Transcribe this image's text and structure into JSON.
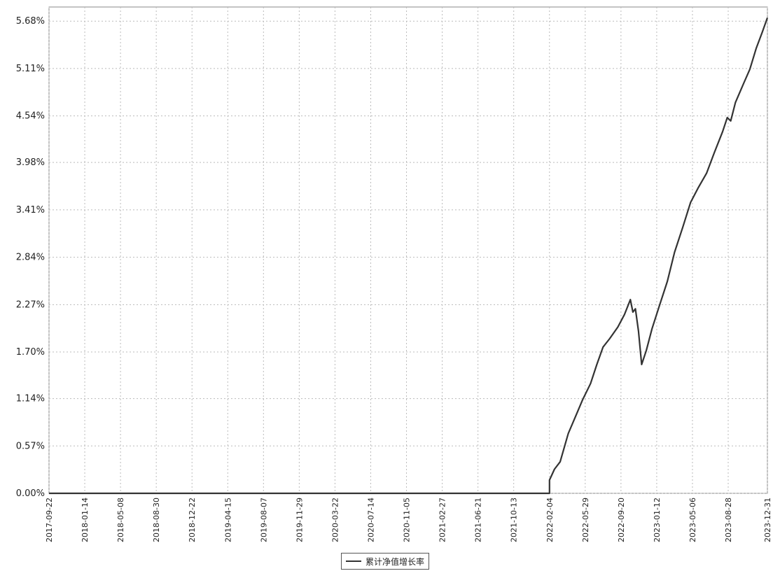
{
  "chart_data": {
    "type": "line",
    "title": "",
    "xlabel": "",
    "ylabel": "",
    "ylim": [
      0,
      5.85
    ],
    "y_ticks": [
      "0.00%",
      "0.57%",
      "1.14%",
      "1.70%",
      "2.27%",
      "2.84%",
      "3.41%",
      "3.98%",
      "4.54%",
      "5.11%",
      "5.68%"
    ],
    "y_tick_values": [
      0.0,
      0.57,
      1.14,
      1.7,
      2.27,
      2.84,
      3.41,
      3.98,
      4.54,
      5.11,
      5.68
    ],
    "x_ticks": [
      "2017-09-22",
      "2018-01-14",
      "2018-05-08",
      "2018-08-30",
      "2018-12-22",
      "2019-04-15",
      "2019-08-07",
      "2019-11-29",
      "2020-03-22",
      "2020-07-14",
      "2020-11-05",
      "2021-02-27",
      "2021-06-21",
      "2021-10-13",
      "2022-02-04",
      "2022-05-29",
      "2022-09-20",
      "2023-01-12",
      "2023-05-06",
      "2023-08-28",
      "2023-12-31"
    ],
    "grid": true,
    "legend_position": "bottom-center",
    "series": [
      {
        "name": "累计净值增长率",
        "color": "#333333",
        "points": [
          [
            "2017-09-22",
            0.0
          ],
          [
            "2018-08-30",
            0.0
          ],
          [
            "2019-08-07",
            0.0
          ],
          [
            "2020-07-14",
            0.0
          ],
          [
            "2021-06-21",
            0.0
          ],
          [
            "2022-02-04",
            0.0
          ],
          [
            "2022-02-04",
            0.16
          ],
          [
            "2022-02-20",
            0.29
          ],
          [
            "2022-03-10",
            0.38
          ],
          [
            "2022-04-05",
            0.72
          ],
          [
            "2022-05-01",
            0.95
          ],
          [
            "2022-05-20",
            1.12
          ],
          [
            "2022-06-15",
            1.32
          ],
          [
            "2022-07-05",
            1.55
          ],
          [
            "2022-07-25",
            1.76
          ],
          [
            "2022-08-15",
            1.86
          ],
          [
            "2022-09-10",
            2.0
          ],
          [
            "2022-10-01",
            2.15
          ],
          [
            "2022-10-20",
            2.33
          ],
          [
            "2022-10-28",
            2.18
          ],
          [
            "2022-11-05",
            2.22
          ],
          [
            "2022-11-15",
            1.95
          ],
          [
            "2022-11-25",
            1.55
          ],
          [
            "2022-12-10",
            1.72
          ],
          [
            "2022-12-28",
            1.98
          ],
          [
            "2023-01-20",
            2.25
          ],
          [
            "2023-02-15",
            2.55
          ],
          [
            "2023-03-10",
            2.9
          ],
          [
            "2023-04-05",
            3.2
          ],
          [
            "2023-04-30",
            3.5
          ],
          [
            "2023-05-25",
            3.68
          ],
          [
            "2023-06-20",
            3.85
          ],
          [
            "2023-07-15",
            4.1
          ],
          [
            "2023-08-10",
            4.35
          ],
          [
            "2023-08-25",
            4.52
          ],
          [
            "2023-09-05",
            4.48
          ],
          [
            "2023-09-20",
            4.7
          ],
          [
            "2023-10-15",
            4.92
          ],
          [
            "2023-11-05",
            5.1
          ],
          [
            "2023-11-25",
            5.35
          ],
          [
            "2023-12-15",
            5.55
          ],
          [
            "2023-12-31",
            5.72
          ]
        ]
      }
    ]
  },
  "legend": {
    "label": "累计净值增长率"
  },
  "colors": {
    "line": "#333333",
    "grid": "#bbbbbb",
    "axis": "#888888"
  }
}
